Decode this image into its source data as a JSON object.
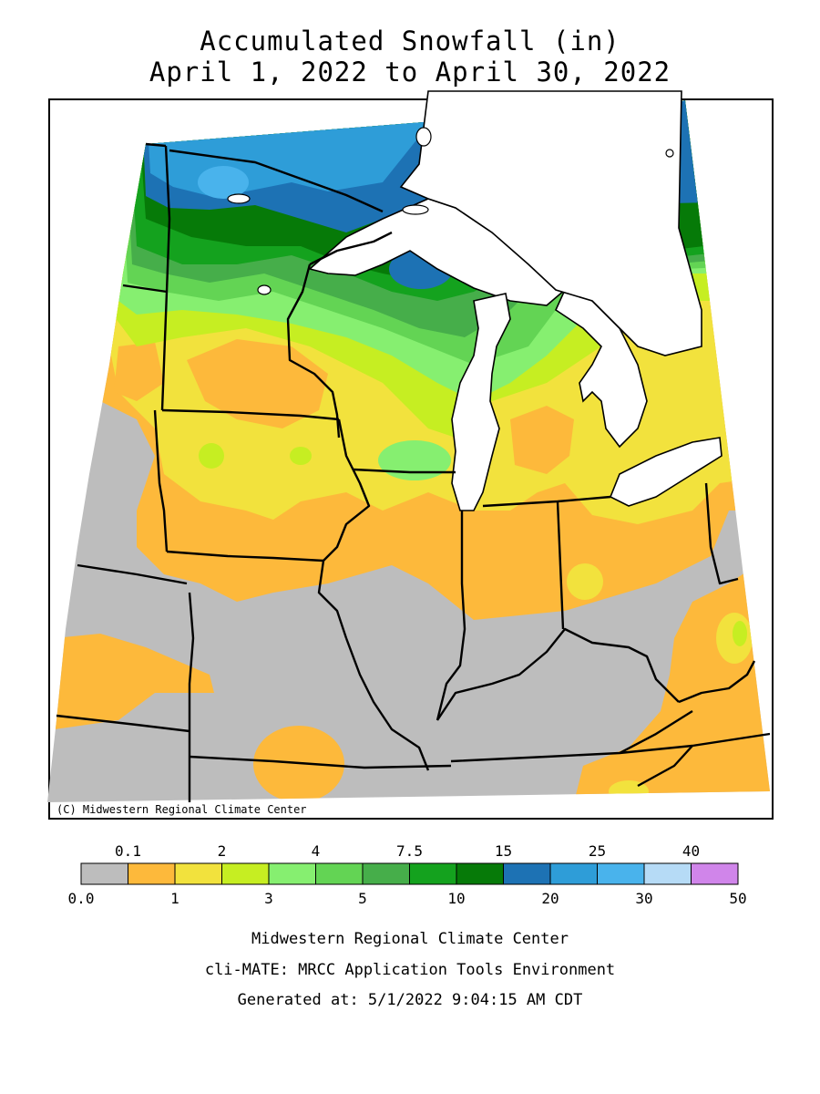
{
  "header": {
    "title": "Accumulated Snowfall (in)",
    "subtitle": "April 1, 2022 to April 30, 2022"
  },
  "map": {
    "copyright": "(C) Midwestern Regional Climate Center"
  },
  "legend": {
    "top_labels": [
      "0.1",
      "2",
      "4",
      "7.5",
      "15",
      "25",
      "40"
    ],
    "bottom_labels": [
      "0.0",
      "1",
      "3",
      "5",
      "10",
      "20",
      "30",
      "50"
    ],
    "bins": [
      {
        "range": "0.0-0.1",
        "color": "#bdbdbd"
      },
      {
        "range": "0.1-1",
        "color": "#fdb93b"
      },
      {
        "range": "1-2",
        "color": "#f2e23d"
      },
      {
        "range": "2-3",
        "color": "#c6ee22"
      },
      {
        "range": "3-4",
        "color": "#86ef70"
      },
      {
        "range": "4-5",
        "color": "#63d454"
      },
      {
        "range": "5-7.5",
        "color": "#46ae4a"
      },
      {
        "range": "7.5-10",
        "color": "#14a21e"
      },
      {
        "range": "10-15",
        "color": "#067a08"
      },
      {
        "range": "15-20",
        "color": "#1d72b4"
      },
      {
        "range": "20-25",
        "color": "#2e9dd8"
      },
      {
        "range": "25-30",
        "color": "#49b3ec"
      },
      {
        "range": "30-40",
        "color": "#b6dbf6"
      },
      {
        "range": "40-50",
        "color": "#d085ea"
      }
    ]
  },
  "footer": {
    "line1": "Midwestern Regional Climate Center",
    "line2": "cli-MATE: MRCC Application Tools Environment",
    "line3": "Generated at: 5/1/2022 9:04:15 AM CDT"
  }
}
